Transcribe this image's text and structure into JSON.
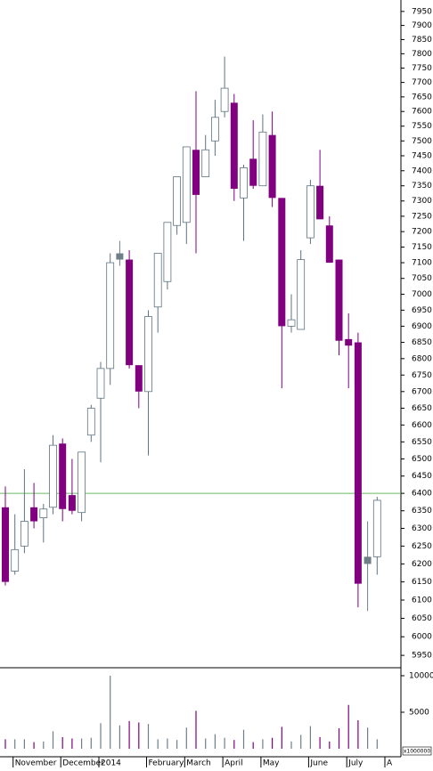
{
  "chart_data": {
    "type": "candlestick",
    "log_scale": true,
    "categories": [
      null,
      "November",
      null,
      null,
      null,
      null,
      "December",
      null,
      null,
      null,
      "2014",
      null,
      null,
      null,
      null,
      "February",
      null,
      null,
      null,
      "March",
      null,
      null,
      null,
      "April",
      null,
      null,
      null,
      "May",
      null,
      null,
      null,
      null,
      "June",
      null,
      null,
      null,
      "July",
      null,
      null,
      null,
      "A"
    ],
    "open": [
      6360,
      6180,
      6250,
      6360,
      6330,
      6360,
      6545,
      6395,
      6345,
      6570,
      6680,
      6770,
      7110,
      7110,
      6780,
      6700,
      6960,
      7040,
      7220,
      7230,
      7470,
      7380,
      7500,
      7600,
      7630,
      7310,
      7440,
      7350,
      7520,
      7310,
      6900,
      6890,
      7180,
      7350,
      7220,
      7110,
      6860,
      6850,
      6200,
      6220,
      null
    ],
    "high": [
      6420,
      6340,
      6470,
      6430,
      6370,
      6570,
      6560,
      6500,
      6520,
      6660,
      6790,
      7130,
      7170,
      7140,
      6780,
      6950,
      7130,
      7230,
      7380,
      7480,
      7670,
      7520,
      7640,
      7790,
      7660,
      7420,
      7570,
      7590,
      7600,
      7310,
      7000,
      7140,
      7370,
      7470,
      7250,
      7110,
      6940,
      6880,
      6320,
      6390,
      null
    ],
    "low": [
      6140,
      6170,
      6230,
      6300,
      6260,
      6340,
      6320,
      6340,
      6320,
      6550,
      6490,
      6720,
      7090,
      6770,
      6650,
      6510,
      6880,
      7015,
      7190,
      7160,
      7130,
      7380,
      7450,
      7580,
      7300,
      7170,
      7340,
      7350,
      7280,
      6710,
      6880,
      6890,
      7160,
      7240,
      7100,
      6810,
      6710,
      6080,
      6070,
      6170,
      null
    ],
    "close": [
      6150,
      6240,
      6320,
      6320,
      6355,
      6540,
      6355,
      6350,
      6520,
      6650,
      6770,
      7100,
      7130,
      6780,
      6700,
      6930,
      7130,
      7230,
      7380,
      7480,
      7320,
      7470,
      7580,
      7680,
      7340,
      7410,
      7350,
      7530,
      7310,
      6900,
      6920,
      7110,
      7350,
      7240,
      7100,
      6855,
      6840,
      6145,
      6220,
      6380,
      null
    ],
    "colors": [
      "#800080",
      "#ffffff",
      "#ffffff",
      "#800080",
      "#ffffff",
      "#ffffff",
      "#800080",
      "#800080",
      "#ffffff",
      "#ffffff",
      "#ffffff",
      "#ffffff",
      "#6f7f88",
      "#800080",
      "#800080",
      "#ffffff",
      "#ffffff",
      "#ffffff",
      "#ffffff",
      "#ffffff",
      "#800080",
      "#ffffff",
      "#ffffff",
      "#ffffff",
      "#800080",
      "#ffffff",
      "#800080",
      "#ffffff",
      "#800080",
      "#800080",
      "#ffffff",
      "#ffffff",
      "#ffffff",
      "#800080",
      "#800080",
      "#800080",
      "#800080",
      "#800080",
      "#6f7f88",
      "#ffffff",
      null
    ],
    "ylim": [
      5917,
      7991
    ],
    "yticks": [
      5950,
      6000,
      6050,
      6100,
      6150,
      6200,
      6250,
      6300,
      6350,
      6400,
      6450,
      6500,
      6550,
      6600,
      6650,
      6700,
      6750,
      6800,
      6850,
      6900,
      6950,
      7000,
      7050,
      7100,
      7150,
      7200,
      7250,
      7300,
      7350,
      7400,
      7450,
      7500,
      7550,
      7600,
      7650,
      7700,
      7750,
      7800,
      7850,
      7900,
      7950
    ],
    "hline": {
      "value": 6400,
      "color": "#66bb66"
    },
    "volume": [
      1300,
      1300,
      1300,
      900,
      1000,
      2400,
      1600,
      1400,
      1400,
      1500,
      3500,
      10000,
      3200,
      3800,
      3600,
      3400,
      1300,
      1400,
      1200,
      2900,
      5200,
      1400,
      2000,
      1500,
      1200,
      2600,
      900,
      1300,
      1500,
      3000,
      1000,
      1900,
      3100,
      1600,
      1000,
      2800,
      6000,
      3900,
      2900,
      1300,
      null
    ],
    "volume_ylim": [
      0,
      10850
    ],
    "volume_yticks": [
      5000,
      10000
    ],
    "volume_unit": "x1000000"
  }
}
